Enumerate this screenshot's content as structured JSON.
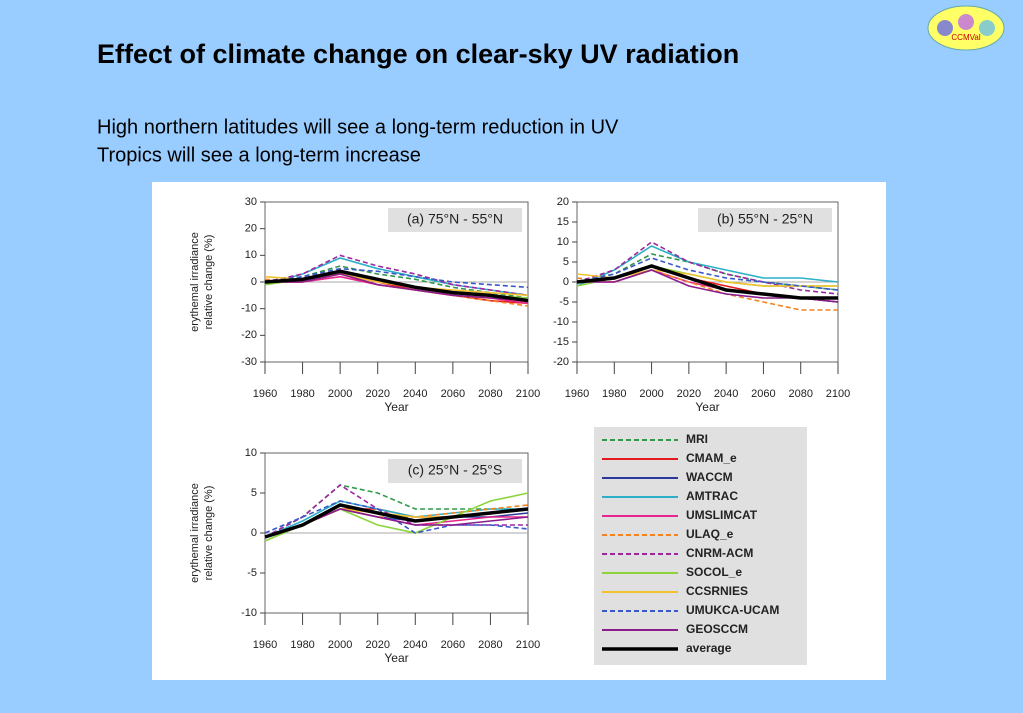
{
  "title": "Effect of climate change on clear-sky UV radiation",
  "lines": [
    "High northern latitudes will see a long-term reduction in UV",
    "Tropics will see a long-term increase"
  ],
  "logo": "CCMVal",
  "chart_data": [
    {
      "type": "line",
      "annotation": "(a) 75°N - 55°N",
      "xlabel": "Year",
      "ylabel": [
        "erythemal irradiance",
        "relative change (%)"
      ],
      "x": [
        1960,
        1980,
        2000,
        2020,
        2040,
        2060,
        2080,
        2100
      ],
      "xlim": [
        1960,
        2100
      ],
      "xticks": [
        1960,
        1980,
        2000,
        2020,
        2040,
        2060,
        2080,
        2100
      ],
      "ylim": [
        -30,
        30
      ],
      "yticks": [
        -30,
        -20,
        -10,
        0,
        10,
        20,
        30
      ],
      "series": [
        {
          "name": "MRI",
          "color": "#2e9a48",
          "dash": true,
          "values": [
            0,
            2,
            6,
            3,
            1,
            -2,
            -4,
            -6
          ]
        },
        {
          "name": "CMAM_e",
          "color": "#e41a1c",
          "dash": false,
          "values": [
            0,
            0,
            3,
            0,
            -3,
            -5,
            -7,
            -8
          ]
        },
        {
          "name": "WACCM",
          "color": "#2b3a9a",
          "dash": false,
          "values": [
            0,
            1,
            4,
            1,
            -2,
            -4,
            -5,
            -7
          ]
        },
        {
          "name": "AMTRAC",
          "color": "#2bb0c8",
          "dash": false,
          "values": [
            -1,
            3,
            9,
            5,
            2,
            -1,
            -3,
            -5
          ]
        },
        {
          "name": "UMSLIMCAT",
          "color": "#e8258c",
          "dash": false,
          "values": [
            0,
            0,
            2,
            -1,
            -3,
            -5,
            -6,
            -8
          ]
        },
        {
          "name": "ULAQ_e",
          "color": "#f5821f",
          "dash": true,
          "values": [
            1,
            0,
            3,
            -1,
            -3,
            -5,
            -7,
            -9
          ]
        },
        {
          "name": "CNRM-ACM",
          "color": "#9c27a0",
          "dash": true,
          "values": [
            0,
            3,
            10,
            6,
            3,
            -1,
            -3,
            -5
          ]
        },
        {
          "name": "SOCOL_e",
          "color": "#8cd43a",
          "dash": false,
          "values": [
            -1,
            1,
            4,
            1,
            -2,
            -4,
            -5,
            -6
          ]
        },
        {
          "name": "CCSRNIES",
          "color": "#f2c12e",
          "dash": false,
          "values": [
            2,
            1,
            3,
            0,
            -2,
            -3,
            -4,
            -5
          ]
        },
        {
          "name": "UMUKCA-UCAM",
          "color": "#3a58c8",
          "dash": true,
          "values": [
            0,
            2,
            5,
            4,
            2,
            0,
            -1,
            -2
          ]
        },
        {
          "name": "GEOSCCM",
          "color": "#8a1c8c",
          "dash": false,
          "values": [
            0,
            0,
            3,
            -1,
            -3,
            -5,
            -6,
            -7
          ]
        },
        {
          "name": "average",
          "color": "#000000",
          "dash": false,
          "values": [
            0,
            1,
            4,
            1,
            -2,
            -4,
            -5,
            -7
          ]
        }
      ]
    },
    {
      "type": "line",
      "annotation": "(b) 55°N - 25°N",
      "xlabel": "Year",
      "x": [
        1960,
        1980,
        2000,
        2020,
        2040,
        2060,
        2080,
        2100
      ],
      "xlim": [
        1960,
        2100
      ],
      "xticks": [
        1960,
        1980,
        2000,
        2020,
        2040,
        2060,
        2080,
        2100
      ],
      "ylim": [
        -20,
        20
      ],
      "yticks": [
        -20,
        -15,
        -10,
        -5,
        0,
        5,
        10,
        15,
        20
      ],
      "series": [
        {
          "name": "MRI",
          "color": "#2e9a48",
          "dash": true,
          "values": [
            0,
            2,
            7,
            5,
            2,
            0,
            -1,
            -2
          ]
        },
        {
          "name": "CMAM_e",
          "color": "#e41a1c",
          "dash": false,
          "values": [
            0,
            1,
            4,
            1,
            -1,
            -3,
            -4,
            -5
          ]
        },
        {
          "name": "WACCM",
          "color": "#2b3a9a",
          "dash": false,
          "values": [
            0,
            1,
            4,
            1,
            -2,
            -3,
            -4,
            -5
          ]
        },
        {
          "name": "AMTRAC",
          "color": "#2bb0c8",
          "dash": false,
          "values": [
            -1,
            3,
            9,
            5,
            3,
            1,
            1,
            0
          ]
        },
        {
          "name": "UMSLIMCAT",
          "color": "#e8258c",
          "dash": false,
          "values": [
            0,
            0,
            3,
            0,
            -2,
            -3,
            -4,
            -4
          ]
        },
        {
          "name": "ULAQ_e",
          "color": "#f5821f",
          "dash": true,
          "values": [
            1,
            0,
            3,
            0,
            -3,
            -5,
            -7,
            -7
          ]
        },
        {
          "name": "CNRM-ACM",
          "color": "#9c27a0",
          "dash": true,
          "values": [
            0,
            3,
            10,
            5,
            2,
            0,
            -2,
            -3
          ]
        },
        {
          "name": "SOCOL_e",
          "color": "#8cd43a",
          "dash": false,
          "values": [
            -1,
            1,
            4,
            2,
            0,
            -1,
            -1,
            -1
          ]
        },
        {
          "name": "CCSRNIES",
          "color": "#f2c12e",
          "dash": false,
          "values": [
            2,
            1,
            3,
            2,
            0,
            -1,
            -1,
            -1
          ]
        },
        {
          "name": "UMUKCA-UCAM",
          "color": "#3a58c8",
          "dash": true,
          "values": [
            0,
            2,
            6,
            3,
            1,
            0,
            -1,
            -2
          ]
        },
        {
          "name": "GEOSCCM",
          "color": "#8a1c8c",
          "dash": false,
          "values": [
            0,
            0,
            3,
            -1,
            -3,
            -4,
            -4,
            -5
          ]
        },
        {
          "name": "average",
          "color": "#000000",
          "dash": false,
          "values": [
            0,
            1,
            4,
            1,
            -2,
            -3,
            -4,
            -4
          ]
        }
      ]
    },
    {
      "type": "line",
      "annotation": "(c) 25°N - 25°S",
      "xlabel": "Year",
      "ylabel": [
        "erythemal irradiance",
        "relative change (%)"
      ],
      "x": [
        1960,
        1980,
        2000,
        2020,
        2040,
        2060,
        2080,
        2100
      ],
      "xlim": [
        1960,
        2100
      ],
      "xticks": [
        1960,
        1980,
        2000,
        2020,
        2040,
        2060,
        2080,
        2100
      ],
      "ylim": [
        -10,
        10
      ],
      "yticks": [
        -10,
        -5,
        0,
        5,
        10
      ],
      "series": [
        {
          "name": "MRI",
          "color": "#2e9a48",
          "dash": true,
          "values": [
            -0.5,
            2,
            6,
            5,
            3,
            3,
            3,
            3
          ]
        },
        {
          "name": "CMAM_e",
          "color": "#e41a1c",
          "dash": false,
          "values": [
            -0.5,
            1,
            3,
            3,
            2,
            2,
            2.5,
            3
          ]
        },
        {
          "name": "WACCM",
          "color": "#2b3a9a",
          "dash": false,
          "values": [
            -0.5,
            1,
            3,
            2,
            1.5,
            2,
            2,
            2.5
          ]
        },
        {
          "name": "AMTRAC",
          "color": "#2bb0c8",
          "dash": false,
          "values": [
            -0.5,
            1.5,
            4,
            3,
            2,
            2.5,
            3,
            3
          ]
        },
        {
          "name": "UMSLIMCAT",
          "color": "#e8258c",
          "dash": false,
          "values": [
            -0.5,
            1,
            3,
            2,
            1,
            1.5,
            2,
            2
          ]
        },
        {
          "name": "ULAQ_e",
          "color": "#f5821f",
          "dash": true,
          "values": [
            -0.5,
            1,
            3,
            2,
            2,
            2.5,
            3,
            3.5
          ]
        },
        {
          "name": "CNRM-ACM",
          "color": "#9c27a0",
          "dash": true,
          "values": [
            -0.5,
            2,
            6,
            3,
            1,
            1,
            1,
            1
          ]
        },
        {
          "name": "SOCOL_e",
          "color": "#8cd43a",
          "dash": false,
          "values": [
            -1,
            1,
            3,
            1,
            0,
            2,
            4,
            5
          ]
        },
        {
          "name": "CCSRNIES",
          "color": "#f2c12e",
          "dash": false,
          "values": [
            -0.5,
            1,
            3,
            2.5,
            2,
            2,
            2.5,
            3
          ]
        },
        {
          "name": "UMUKCA-UCAM",
          "color": "#3a58c8",
          "dash": true,
          "values": [
            0,
            2,
            4,
            3,
            0,
            1,
            1,
            0.5
          ]
        },
        {
          "name": "GEOSCCM",
          "color": "#8a1c8c",
          "dash": false,
          "values": [
            -0.5,
            1,
            3,
            2,
            1,
            1,
            1.5,
            2
          ]
        },
        {
          "name": "average",
          "color": "#000000",
          "dash": false,
          "values": [
            -0.5,
            1,
            3.5,
            2.5,
            1.5,
            2,
            2.5,
            3
          ]
        }
      ]
    }
  ]
}
